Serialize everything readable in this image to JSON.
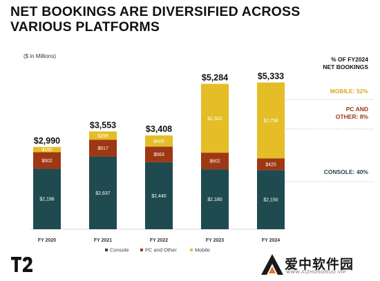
{
  "header": {
    "title_line1": "NET BOOKINGS ARE DIVERSIFIED ACROSS",
    "title_line2": "VARIOUS PLATFORMS",
    "unit_note": "($ in Millions)"
  },
  "chart_data": {
    "type": "bar",
    "stacked": true,
    "categories": [
      "FY 2020",
      "FY 2021",
      "FY 2022",
      "FY 2023",
      "FY 2024"
    ],
    "totals": [
      "$2,990",
      "$3,553",
      "$3,408",
      "$5,284",
      "$5,333"
    ],
    "series": [
      {
        "name": "Console",
        "color": "#1f4a4f",
        "values": [
          2198,
          2637,
          2440,
          2180,
          2150
        ],
        "labels": [
          "$2,198",
          "$2,637",
          "$2,440",
          "$2,180",
          "$2,150"
        ]
      },
      {
        "name": "PC and Other",
        "color": "#9e3713",
        "values": [
          602,
          617,
          563,
          602,
          425
        ],
        "labels": [
          "$602",
          "$617",
          "$563",
          "$602",
          "$425"
        ]
      },
      {
        "name": "Mobile",
        "color": "#e4bd27",
        "values": [
          191,
          299,
          405,
          2502,
          2758
        ],
        "labels": [
          "$191",
          "$299",
          "$405",
          "$2,502",
          "$2,758"
        ]
      }
    ],
    "legend_position": "bottom",
    "annotations": {
      "header_line1": "% OF FY2024",
      "header_line2": "NET BOOKINGS",
      "mobile": "MOBILE: 52%",
      "pc_line1": "PC AND",
      "pc_line2": "OTHER: 8%",
      "console": "CONSOLE: 40%"
    },
    "annotation_colors": {
      "mobile": "#d6a81a",
      "pc": "#9e3713",
      "console": "#1f4a4f"
    }
  },
  "branding": {
    "logo_text": "T2",
    "watermark_text": "爱中软件园",
    "watermark_url": "WWW.AIZHONGRUO.VIP"
  }
}
